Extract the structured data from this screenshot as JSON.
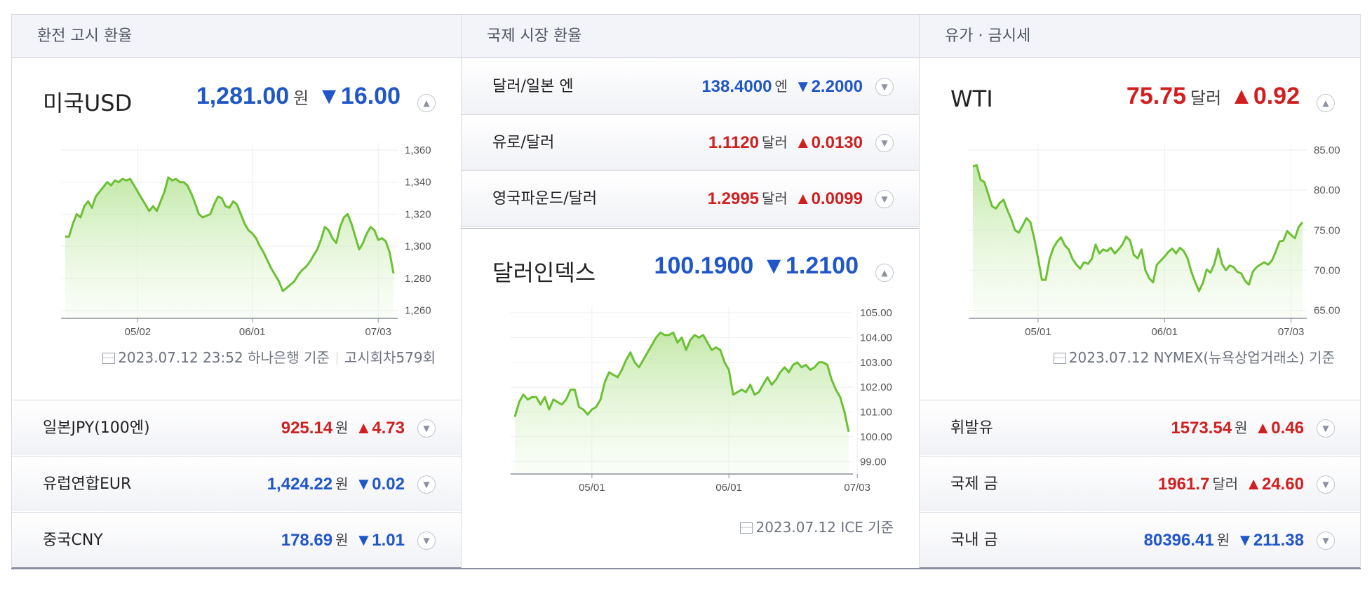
{
  "left": {
    "header": "환전 고시 환율",
    "main": {
      "title": "미국USD",
      "value": "1,281.00",
      "unit": "원",
      "change": "▼16.00",
      "direction": "down",
      "toggle": "▲"
    },
    "footer": {
      "date": "2023.07.12 23:52 하나은행 기준",
      "round": "고시회차579회"
    },
    "rows": [
      {
        "name": "일본JPY(100엔)",
        "value": "925.14",
        "unit": "원",
        "change": "▲4.73",
        "direction": "up",
        "toggle": "▼"
      },
      {
        "name": "유럽연합EUR",
        "value": "1,424.22",
        "unit": "원",
        "change": "▼0.02",
        "direction": "down",
        "toggle": "▼"
      },
      {
        "name": "중국CNY",
        "value": "178.69",
        "unit": "원",
        "change": "▼1.01",
        "direction": "down",
        "toggle": "▼"
      }
    ]
  },
  "center": {
    "header": "국제 시장 환율",
    "rows": [
      {
        "name": "달러/일본 엔",
        "value": "138.4000",
        "unit": "엔",
        "change": "▼2.2000",
        "direction": "down",
        "toggle": "▼"
      },
      {
        "name": "유로/달러",
        "value": "1.1120",
        "unit": "달러",
        "change": "▲0.0130",
        "direction": "up",
        "toggle": "▼"
      },
      {
        "name": "영국파운드/달러",
        "value": "1.2995",
        "unit": "달러",
        "change": "▲0.0099",
        "direction": "up",
        "toggle": "▼"
      }
    ],
    "main": {
      "title": "달러인덱스",
      "value": "100.1900",
      "unit": "",
      "change": "▼1.2100",
      "direction": "down",
      "toggle": "▲"
    },
    "footer": {
      "date": "2023.07.12 ICE 기준"
    }
  },
  "right": {
    "header": "유가 · 금시세",
    "main": {
      "title": "WTI",
      "value": "75.75",
      "unit": "달러",
      "change": "▲0.92",
      "direction": "up",
      "toggle": "▲"
    },
    "footer": {
      "date": "2023.07.12 NYMEX(뉴욕상업거래소) 기준"
    },
    "rows": [
      {
        "name": "휘발유",
        "value": "1573.54",
        "unit": "원",
        "change": "▲0.46",
        "direction": "up",
        "toggle": "▼"
      },
      {
        "name": "국제 금",
        "value": "1961.7",
        "unit": "달러",
        "change": "▲24.60",
        "direction": "up",
        "toggle": "▼"
      },
      {
        "name": "국내 금",
        "value": "80396.41",
        "unit": "원",
        "change": "▼211.38",
        "direction": "down",
        "toggle": "▼"
      }
    ]
  },
  "colors": {
    "up": "#d11f1f",
    "down": "#1f56c8",
    "line": "#6cc034"
  },
  "chart_data": [
    {
      "type": "area",
      "series_of": "미국USD",
      "xtick_labels": [
        "05/02",
        "06/01",
        "07/03"
      ],
      "xtick_index": [
        19,
        49,
        82
      ],
      "ytick_labels": [
        "1,360",
        "1,340",
        "1,320",
        "1,300",
        "1,280",
        "1,260"
      ],
      "ylim": [
        1255,
        1360
      ],
      "values": [
        1306,
        1306,
        1314,
        1320,
        1318,
        1325,
        1328,
        1324,
        1331,
        1334,
        1337,
        1340,
        1338,
        1341,
        1340,
        1342,
        1341,
        1342,
        1338,
        1334,
        1330,
        1326,
        1322,
        1325,
        1322,
        1328,
        1334,
        1343,
        1341,
        1342,
        1340,
        1340,
        1338,
        1333,
        1327,
        1320,
        1318,
        1319,
        1320,
        1326,
        1331,
        1330,
        1325,
        1324,
        1328,
        1326,
        1320,
        1314,
        1310,
        1308,
        1305,
        1300,
        1296,
        1291,
        1286,
        1282,
        1278,
        1272,
        1274,
        1276,
        1278,
        1282,
        1285,
        1287,
        1290,
        1294,
        1298,
        1304,
        1312,
        1310,
        1305,
        1302,
        1312,
        1318,
        1320,
        1314,
        1306,
        1298,
        1302,
        1308,
        1312,
        1310,
        1304,
        1305,
        1303,
        1296,
        1283
      ]
    },
    {
      "type": "area",
      "series_of": "달러인덱스",
      "xtick_labels": [
        "05/01",
        "06/01",
        "07/03"
      ],
      "xtick_index": [
        18,
        50,
        80
      ],
      "ytick_labels": [
        "105.00",
        "104.00",
        "103.00",
        "102.00",
        "101.00",
        "100.00",
        "99.00"
      ],
      "ylim": [
        98.5,
        105.0
      ],
      "values": [
        100.8,
        101.4,
        101.7,
        101.5,
        101.6,
        101.6,
        101.3,
        101.6,
        101.1,
        101.5,
        101.4,
        101.3,
        101.5,
        101.9,
        101.9,
        101.2,
        101.1,
        100.9,
        101.1,
        101.2,
        101.5,
        102.2,
        102.6,
        102.5,
        102.4,
        102.7,
        103.1,
        103.4,
        103.0,
        102.8,
        103.1,
        103.4,
        103.7,
        104.0,
        104.2,
        104.1,
        104.1,
        104.2,
        103.8,
        104.0,
        103.5,
        103.9,
        104.1,
        104.0,
        104.1,
        103.8,
        103.5,
        103.6,
        103.5,
        103.0,
        102.7,
        101.7,
        101.8,
        101.9,
        101.8,
        102.1,
        101.7,
        101.8,
        102.1,
        102.4,
        102.1,
        102.3,
        102.6,
        102.8,
        102.6,
        102.9,
        103.0,
        102.8,
        102.9,
        102.7,
        102.8,
        103.0,
        103.0,
        102.9,
        102.3,
        101.9,
        101.6,
        101.0,
        100.2
      ]
    },
    {
      "type": "area",
      "series_of": "WTI",
      "xtick_labels": [
        "05/01",
        "06/01",
        "07/03"
      ],
      "xtick_index": [
        17,
        50,
        83
      ],
      "ytick_labels": [
        "85.00",
        "80.00",
        "75.00",
        "70.00",
        "65.00"
      ],
      "ylim": [
        64,
        85
      ],
      "values": [
        83.0,
        83.1,
        81.3,
        81.0,
        79.5,
        78.0,
        77.7,
        78.4,
        78.8,
        77.5,
        76.4,
        75.0,
        74.7,
        75.6,
        76.5,
        76.0,
        74.0,
        71.5,
        68.8,
        68.8,
        71.4,
        72.8,
        73.6,
        74.1,
        73.1,
        72.6,
        71.4,
        70.7,
        70.2,
        71.0,
        70.8,
        71.4,
        73.2,
        72.1,
        72.6,
        72.4,
        72.8,
        72.1,
        72.6,
        73.2,
        74.2,
        73.7,
        71.9,
        71.5,
        72.6,
        70.0,
        69.0,
        68.5,
        70.7,
        71.2,
        71.7,
        72.3,
        72.7,
        72.1,
        72.8,
        72.4,
        71.5,
        69.8,
        68.5,
        67.4,
        68.4,
        70.1,
        69.7,
        70.8,
        72.7,
        70.8,
        70.0,
        70.6,
        70.4,
        69.8,
        69.6,
        68.7,
        68.2,
        69.8,
        70.4,
        70.7,
        71.0,
        70.7,
        71.2,
        72.3,
        73.6,
        73.7,
        74.9,
        74.4,
        74.0,
        75.4,
        76.0
      ]
    }
  ]
}
